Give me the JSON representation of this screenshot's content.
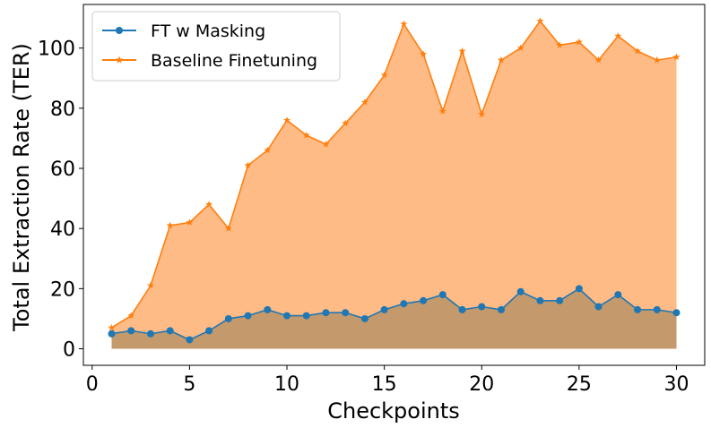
{
  "chart_data": {
    "type": "area",
    "xlabel": "Checkpoints",
    "ylabel": "Total Extraction Rate (TER)",
    "xlim": [
      -0.45,
      31.45
    ],
    "ylim": [
      -5.5,
      114.5
    ],
    "x_ticks": [
      "0",
      "5",
      "10",
      "15",
      "20",
      "25",
      "30"
    ],
    "y_ticks": [
      "0",
      "20",
      "40",
      "60",
      "80",
      "100"
    ],
    "grid": false,
    "legend_position": "top-left",
    "x": [
      1,
      2,
      3,
      4,
      5,
      6,
      7,
      8,
      9,
      10,
      11,
      12,
      13,
      14,
      15,
      16,
      17,
      18,
      19,
      20,
      21,
      22,
      23,
      24,
      25,
      26,
      27,
      28,
      29,
      30
    ],
    "series": [
      {
        "name": "FT w Masking",
        "color": "#1f77b4",
        "fill": "#c4996b",
        "marker": "circle",
        "values": [
          5,
          6,
          5,
          6,
          3,
          6,
          10,
          11,
          13,
          11,
          11,
          12,
          12,
          10,
          13,
          15,
          16,
          18,
          13,
          14,
          13,
          19,
          16,
          16,
          20,
          14,
          18,
          13,
          13,
          12
        ]
      },
      {
        "name": "Baseline Finetuning",
        "color": "#ff7f0e",
        "fill": "#ffbb85",
        "marker": "star",
        "values": [
          7,
          11,
          21,
          41,
          42,
          48,
          40,
          61,
          66,
          76,
          71,
          68,
          75,
          82,
          91,
          108,
          98,
          79,
          99,
          78,
          96,
          100,
          109,
          101,
          102,
          96,
          104,
          99,
          96,
          97
        ]
      }
    ]
  }
}
